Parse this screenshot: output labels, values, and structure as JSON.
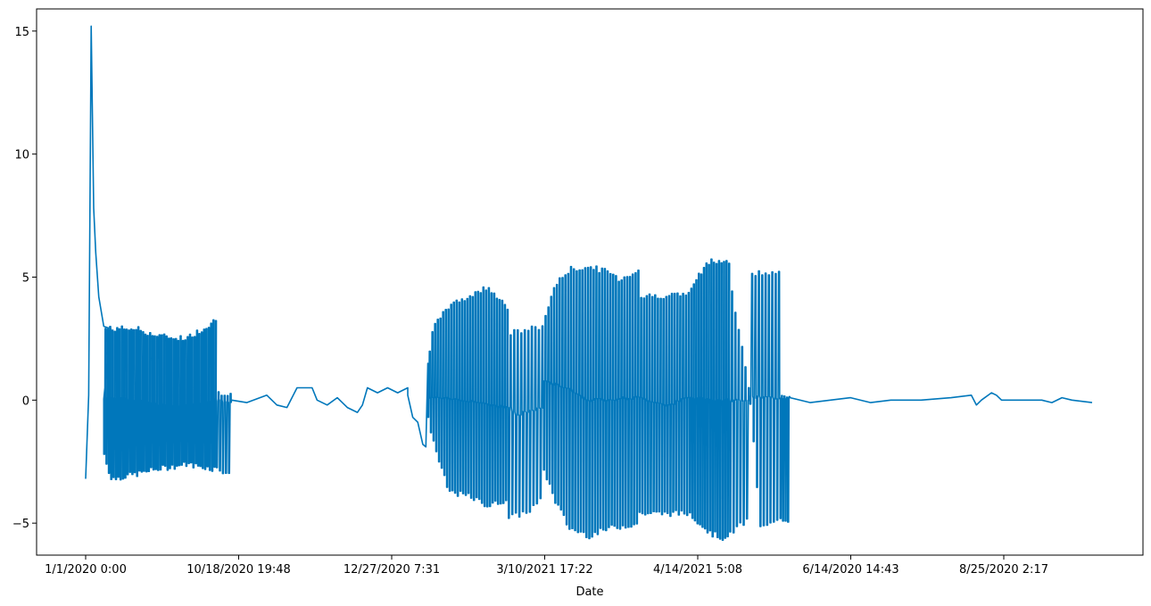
{
  "chart_data": {
    "type": "line",
    "title": "",
    "xlabel": "Date",
    "ylabel": "",
    "x_tick_labels": [
      "1/1/2020 0:00",
      "10/18/2020 19:48",
      "12/27/2020 7:31",
      "3/10/2021 17:22",
      "4/14/2021 5:08",
      "6/14/2020 14:43",
      "8/25/2020 2:17"
    ],
    "y_ticks": [
      -5,
      0,
      5,
      10,
      15
    ],
    "ylim": [
      -6.3,
      15.9
    ],
    "grid": false,
    "legend": "none",
    "line_color": "#0077bb",
    "series": [
      {
        "name": "",
        "segments": [
          {
            "x_range": [
              0.0,
              0.025
            ],
            "oscillating": false,
            "trend": [
              [
                0.0,
                -3.2
              ],
              [
                0.003,
                0.2
              ],
              [
                0.0055,
                15.2
              ],
              [
                0.008,
                7.8
              ],
              [
                0.01,
                6.0
              ],
              [
                0.013,
                4.2
              ],
              [
                0.018,
                3.0
              ],
              [
                0.025,
                2.9
              ]
            ]
          },
          {
            "x_range": [
              0.018,
              0.13
            ],
            "oscillating": true,
            "count": 48,
            "upper": [
              [
                0.018,
                2.9
              ],
              [
                0.05,
                2.9
              ],
              [
                0.07,
                2.6
              ],
              [
                0.1,
                2.5
              ],
              [
                0.12,
                3.0
              ],
              [
                0.13,
                3.3
              ]
            ],
            "lower": [
              [
                0.018,
                -2.2
              ],
              [
                0.025,
                -3.2
              ],
              [
                0.05,
                -3.0
              ],
              [
                0.07,
                -2.8
              ],
              [
                0.1,
                -2.6
              ],
              [
                0.13,
                -2.8
              ]
            ],
            "mid": [
              [
                0.018,
                0.1
              ],
              [
                0.05,
                0.0
              ],
              [
                0.09,
                -0.3
              ],
              [
                0.13,
                0.0
              ]
            ]
          },
          {
            "x_range": [
              0.13,
              0.145
            ],
            "oscillating": true,
            "count": 5,
            "upper": [
              [
                0.13,
                0.3
              ],
              [
                0.145,
                0.3
              ]
            ],
            "lower": [
              [
                0.13,
                -2.8
              ],
              [
                0.145,
                -3.0
              ]
            ],
            "mid": [
              [
                0.13,
                0.0
              ],
              [
                0.145,
                -0.1
              ]
            ]
          },
          {
            "x_range": [
              0.145,
              0.32
            ],
            "oscillating": false,
            "trend": [
              [
                0.145,
                0.0
              ],
              [
                0.16,
                -0.1
              ],
              [
                0.18,
                0.2
              ],
              [
                0.19,
                -0.2
              ],
              [
                0.2,
                -0.3
              ],
              [
                0.21,
                0.5
              ],
              [
                0.225,
                0.5
              ],
              [
                0.23,
                0.0
              ],
              [
                0.24,
                -0.2
              ],
              [
                0.25,
                0.1
              ],
              [
                0.26,
                -0.3
              ],
              [
                0.27,
                -0.5
              ],
              [
                0.275,
                -0.2
              ],
              [
                0.28,
                0.5
              ],
              [
                0.29,
                0.3
              ],
              [
                0.3,
                0.5
              ],
              [
                0.31,
                0.3
              ],
              [
                0.32,
                0.5
              ]
            ]
          },
          {
            "x_range": [
              0.32,
              0.34
            ],
            "oscillating": false,
            "trend": [
              [
                0.32,
                0.2
              ],
              [
                0.325,
                -0.7
              ],
              [
                0.33,
                -0.9
              ],
              [
                0.335,
                -1.8
              ],
              [
                0.338,
                -1.9
              ],
              [
                0.34,
                1.5
              ]
            ]
          },
          {
            "x_range": [
              0.34,
              0.42
            ],
            "oscillating": true,
            "count": 30,
            "upper": [
              [
                0.34,
                1.6
              ],
              [
                0.345,
                2.9
              ],
              [
                0.36,
                3.8
              ],
              [
                0.385,
                4.3
              ],
              [
                0.4,
                4.6
              ],
              [
                0.42,
                3.7
              ]
            ],
            "lower": [
              [
                0.34,
                -0.8
              ],
              [
                0.35,
                -2.4
              ],
              [
                0.36,
                -3.7
              ],
              [
                0.38,
                -3.9
              ],
              [
                0.4,
                -4.3
              ],
              [
                0.42,
                -4.0
              ]
            ],
            "mid": [
              [
                0.34,
                0.1
              ],
              [
                0.38,
                0.0
              ],
              [
                0.42,
                -0.3
              ]
            ]
          },
          {
            "x_range": [
              0.42,
              0.455
            ],
            "oscillating": true,
            "count": 10,
            "upper": [
              [
                0.42,
                2.7
              ],
              [
                0.455,
                3.0
              ]
            ],
            "lower": [
              [
                0.42,
                -4.8
              ],
              [
                0.44,
                -4.5
              ],
              [
                0.455,
                -4.0
              ]
            ],
            "mid": [
              [
                0.42,
                -0.2
              ],
              [
                0.43,
                -0.6
              ],
              [
                0.455,
                -0.3
              ]
            ]
          },
          {
            "x_range": [
              0.455,
              0.5
            ],
            "oscillating": true,
            "count": 16,
            "upper": [
              [
                0.455,
                3.2
              ],
              [
                0.465,
                4.6
              ],
              [
                0.48,
                5.3
              ],
              [
                0.5,
                5.4
              ]
            ],
            "lower": [
              [
                0.455,
                -2.8
              ],
              [
                0.465,
                -4.0
              ],
              [
                0.48,
                -5.2
              ],
              [
                0.5,
                -5.5
              ]
            ],
            "mid": [
              [
                0.455,
                0.8
              ],
              [
                0.48,
                0.5
              ],
              [
                0.5,
                0.0
              ]
            ]
          },
          {
            "x_range": [
              0.5,
              0.55
            ],
            "oscillating": true,
            "count": 18,
            "upper": [
              [
                0.5,
                5.4
              ],
              [
                0.52,
                5.2
              ],
              [
                0.53,
                4.9
              ],
              [
                0.55,
                5.3
              ]
            ],
            "lower": [
              [
                0.5,
                -5.5
              ],
              [
                0.52,
                -5.2
              ],
              [
                0.55,
                -5.0
              ]
            ],
            "mid": [
              [
                0.5,
                0.0
              ],
              [
                0.55,
                0.1
              ]
            ]
          },
          {
            "x_range": [
              0.55,
              0.6
            ],
            "oscillating": true,
            "count": 18,
            "upper": [
              [
                0.55,
                4.2
              ],
              [
                0.6,
                4.3
              ]
            ],
            "lower": [
              [
                0.55,
                -4.6
              ],
              [
                0.6,
                -4.6
              ]
            ],
            "mid": [
              [
                0.55,
                0.1
              ],
              [
                0.58,
                -0.2
              ],
              [
                0.6,
                0.1
              ]
            ]
          },
          {
            "x_range": [
              0.6,
              0.64
            ],
            "oscillating": true,
            "count": 16,
            "upper": [
              [
                0.6,
                4.5
              ],
              [
                0.62,
                5.7
              ],
              [
                0.64,
                5.6
              ]
            ],
            "lower": [
              [
                0.6,
                -4.6
              ],
              [
                0.62,
                -5.4
              ],
              [
                0.64,
                -5.7
              ]
            ],
            "mid": [
              [
                0.6,
                0.1
              ],
              [
                0.63,
                0.0
              ],
              [
                0.64,
                0.0
              ]
            ]
          },
          {
            "x_range": [
              0.64,
              0.66
            ],
            "oscillating": true,
            "count": 6,
            "upper": [
              [
                0.64,
                4.8
              ],
              [
                0.66,
                0.2
              ]
            ],
            "lower": [
              [
                0.64,
                -5.4
              ],
              [
                0.66,
                -4.8
              ]
            ],
            "mid": [
              [
                0.64,
                0.0
              ],
              [
                0.66,
                0.0
              ]
            ]
          },
          {
            "x_range": [
              0.66,
              0.69
            ],
            "oscillating": true,
            "count": 9,
            "upper": [
              [
                0.66,
                5.2
              ],
              [
                0.69,
                5.1
              ]
            ],
            "lower": [
              [
                0.66,
                -0.1
              ],
              [
                0.67,
                -5.2
              ],
              [
                0.69,
                -4.9
              ]
            ],
            "mid": [
              [
                0.66,
                0.1
              ],
              [
                0.69,
                0.1
              ]
            ]
          },
          {
            "x_range": [
              0.69,
              0.7
            ],
            "oscillating": true,
            "count": 4,
            "upper": [
              [
                0.69,
                0.2
              ],
              [
                0.7,
                0.2
              ]
            ],
            "lower": [
              [
                0.69,
                -4.8
              ],
              [
                0.7,
                -4.9
              ]
            ],
            "mid": [
              [
                0.69,
                0.1
              ],
              [
                0.7,
                0.1
              ]
            ]
          },
          {
            "x_range": [
              0.7,
              1.0
            ],
            "oscillating": false,
            "trend": [
              [
                0.7,
                0.1
              ],
              [
                0.72,
                -0.1
              ],
              [
                0.74,
                0.0
              ],
              [
                0.76,
                0.1
              ],
              [
                0.78,
                -0.1
              ],
              [
                0.8,
                0.0
              ],
              [
                0.83,
                0.0
              ],
              [
                0.86,
                0.1
              ],
              [
                0.88,
                0.2
              ],
              [
                0.885,
                -0.2
              ],
              [
                0.89,
                0.0
              ],
              [
                0.9,
                0.3
              ],
              [
                0.905,
                0.2
              ],
              [
                0.91,
                0.0
              ],
              [
                0.93,
                0.0
              ],
              [
                0.95,
                0.0
              ],
              [
                0.96,
                -0.1
              ],
              [
                0.97,
                0.1
              ],
              [
                0.98,
                0.0
              ],
              [
                1.0,
                -0.1
              ]
            ]
          }
        ]
      }
    ]
  }
}
